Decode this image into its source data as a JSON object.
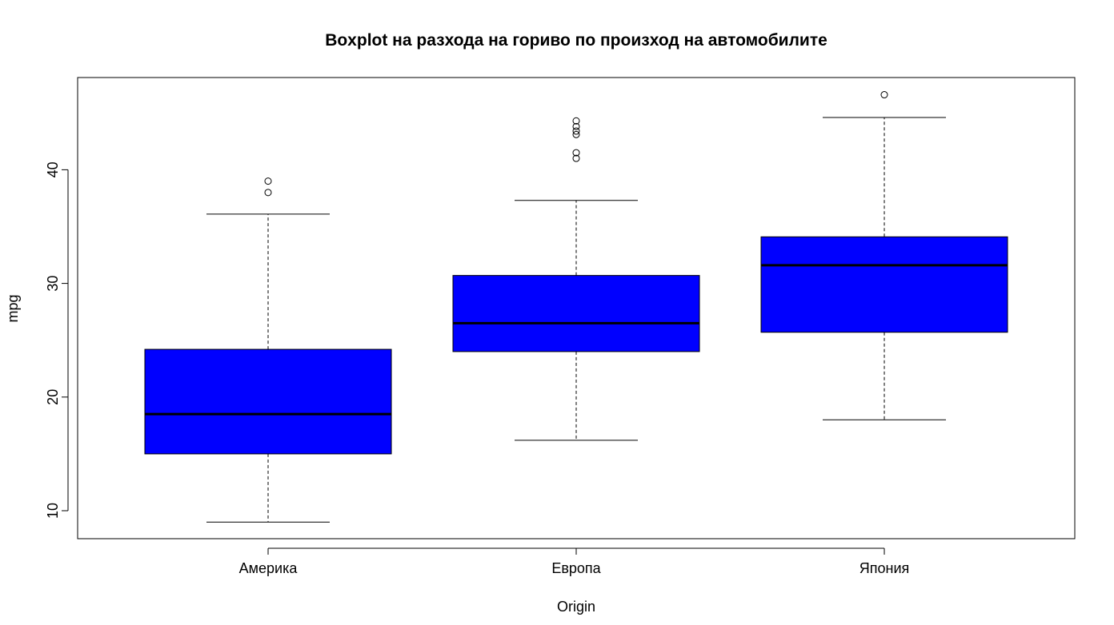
{
  "chart_data": {
    "type": "boxplot",
    "title": "Boxplot на разхода на гориво по произход на автомобилите",
    "xlabel": "Origin",
    "ylabel": "mpg",
    "ylim": [
      7.5,
      48
    ],
    "yticks": [
      10,
      20,
      30,
      40
    ],
    "categories": [
      "Америка",
      "Европа",
      "Япония"
    ],
    "box_color": "#0000ff",
    "boxes": [
      {
        "category": "Америка",
        "whisker_low": 9.0,
        "q1": 15.0,
        "median": 18.5,
        "q3": 24.2,
        "whisker_high": 36.1,
        "outliers": [
          38.0,
          39.0
        ]
      },
      {
        "category": "Европа",
        "whisker_low": 16.2,
        "q1": 24.0,
        "median": 26.5,
        "q3": 30.7,
        "whisker_high": 37.3,
        "outliers": [
          41.0,
          41.5,
          43.1,
          43.4,
          43.8,
          44.3
        ]
      },
      {
        "category": "Япония",
        "whisker_low": 18.0,
        "q1": 25.7,
        "median": 31.6,
        "q3": 34.1,
        "whisker_high": 44.6,
        "outliers": [
          46.6
        ]
      }
    ]
  }
}
